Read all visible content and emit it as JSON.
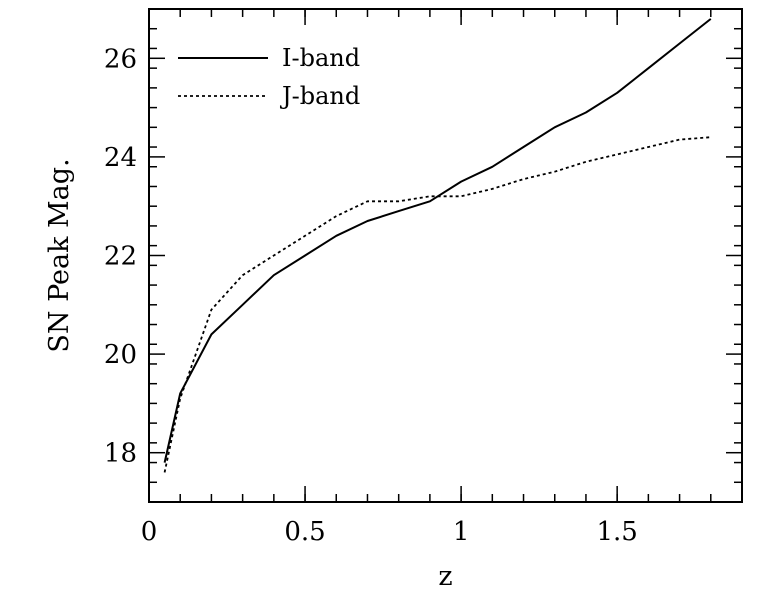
{
  "chart_data": {
    "type": "line",
    "title": "",
    "xlabel": "z",
    "ylabel": "SN Peak Mag.",
    "xlim": [
      0,
      1.9
    ],
    "ylim": [
      17,
      27
    ],
    "x_ticks": [
      0,
      0.5,
      1,
      1.5
    ],
    "x_tick_labels": [
      "0",
      "0.5",
      "1",
      "1.5"
    ],
    "x_minor_step": 0.1,
    "y_ticks": [
      18,
      20,
      22,
      24,
      26
    ],
    "y_tick_labels": [
      "18",
      "20",
      "22",
      "24",
      "26"
    ],
    "y_minor_step": 0.4,
    "grid": false,
    "legend_position": "top-left",
    "series": [
      {
        "name": "I-band",
        "style": "solid",
        "x": [
          0.05,
          0.1,
          0.2,
          0.3,
          0.4,
          0.5,
          0.6,
          0.7,
          0.8,
          0.9,
          1.0,
          1.1,
          1.2,
          1.3,
          1.4,
          1.5,
          1.6,
          1.7,
          1.8
        ],
        "y": [
          17.8,
          19.2,
          20.4,
          21.0,
          21.6,
          22.0,
          22.4,
          22.7,
          22.9,
          23.1,
          23.5,
          23.8,
          24.2,
          24.6,
          24.9,
          25.3,
          25.8,
          26.3,
          26.8
        ]
      },
      {
        "name": "J-band",
        "style": "dotted",
        "x": [
          0.05,
          0.1,
          0.2,
          0.3,
          0.4,
          0.5,
          0.6,
          0.7,
          0.8,
          0.9,
          1.0,
          1.1,
          1.2,
          1.3,
          1.4,
          1.5,
          1.6,
          1.7,
          1.8
        ],
        "y": [
          17.6,
          19.1,
          20.9,
          21.6,
          22.0,
          22.4,
          22.8,
          23.1,
          23.1,
          23.2,
          23.2,
          23.35,
          23.55,
          23.7,
          23.9,
          24.05,
          24.2,
          24.35,
          24.4
        ]
      }
    ]
  },
  "colors": {
    "line": "#000000",
    "background": "#ffffff"
  }
}
